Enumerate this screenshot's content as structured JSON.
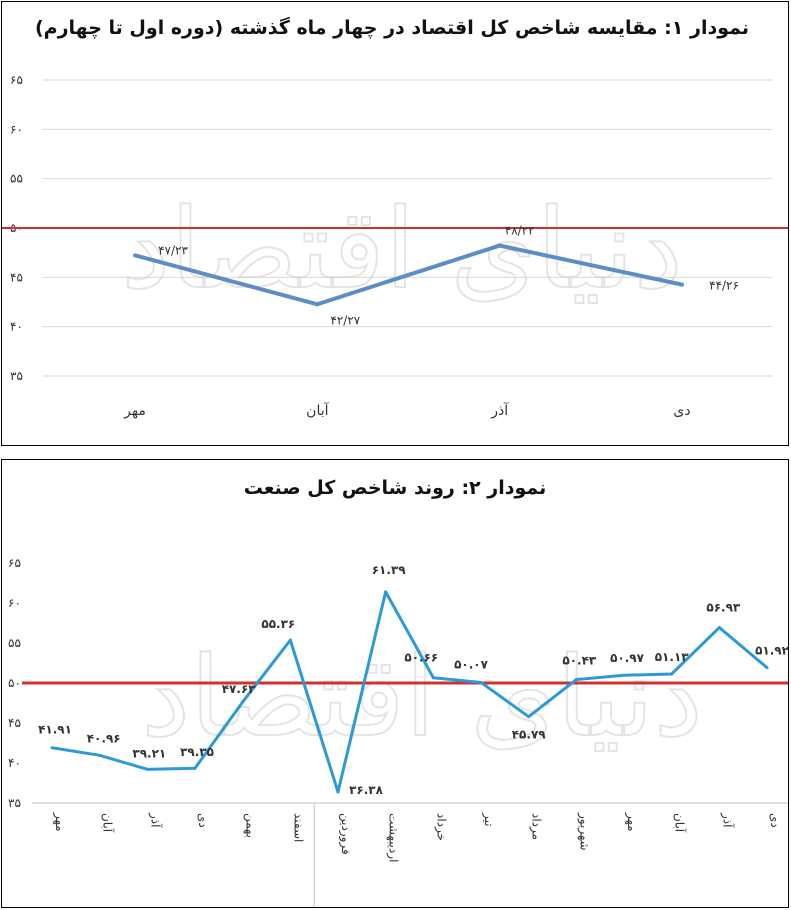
{
  "chart_data": [
    {
      "type": "line",
      "title": "نمودار ۱: مقایسه شاخص کل اقتصاد در چهار ماه گذشته (دوره اول تا چهارم)",
      "categories": [
        "مهر",
        "آبان",
        "آذر",
        "دی"
      ],
      "values": [
        47.23,
        42.27,
        48.22,
        44.26
      ],
      "value_labels": [
        "۴۷/۲۳",
        "۴۲/۲۷",
        "۴۸/۲۲",
        "۴۴/۲۶"
      ],
      "ytick_labels": [
        "۳۵",
        "۴۰",
        "۴۵",
        "۵۰",
        "۵۵",
        "۶۰",
        "۶۵"
      ],
      "yticks": [
        35,
        40,
        45,
        50,
        55,
        60,
        65
      ],
      "ylim": [
        35,
        65
      ],
      "reference_line": 50,
      "grid": true,
      "colors": {
        "series": "#5b8ec7",
        "reference": "#d0312d"
      }
    },
    {
      "type": "line",
      "title": "نمودار ۲: روند شاخص کل صنعت",
      "categories": [
        "مهر",
        "آبان",
        "آذر",
        "دی",
        "بهمن",
        "اسفند",
        "فروردین",
        "اردیبهشت",
        "خرداد",
        "تیر",
        "مرداد",
        "شهریور",
        "مهر",
        "آبان",
        "آذر",
        "دی"
      ],
      "values": [
        41.91,
        40.96,
        39.21,
        39.35,
        47.63,
        55.36,
        36.38,
        61.39,
        50.66,
        50.07,
        45.79,
        50.43,
        50.97,
        51.13,
        56.93,
        51.92
      ],
      "value_labels": [
        "۴۱.۹۱",
        "۴۰.۹۶",
        "۳۹.۲۱",
        "۳۹.۳۵",
        "۴۷.۶۳",
        "۵۵.۳۶",
        "۳۶.۳۸",
        "۶۱.۳۹",
        "۵۰.۶۶",
        "۵۰.۰۷",
        "۴۵.۷۹",
        "۵۰.۴۳",
        "۵۰.۹۷",
        "۵۱.۱۳",
        "۵۶.۹۳",
        "۵۱.۹۲"
      ],
      "ytick_labels": [
        "۳۵",
        "۴۰",
        "۴۵",
        "۵۰",
        "۵۵",
        "۶۰",
        "۶۵"
      ],
      "yticks": [
        35,
        40,
        45,
        50,
        55,
        60,
        65
      ],
      "ylim": [
        35,
        65
      ],
      "reference_line": 50,
      "grid": false,
      "colors": {
        "series": "#2b9ad6",
        "reference": "#d0312d"
      }
    }
  ],
  "watermark": "دنیای اقتصاد"
}
